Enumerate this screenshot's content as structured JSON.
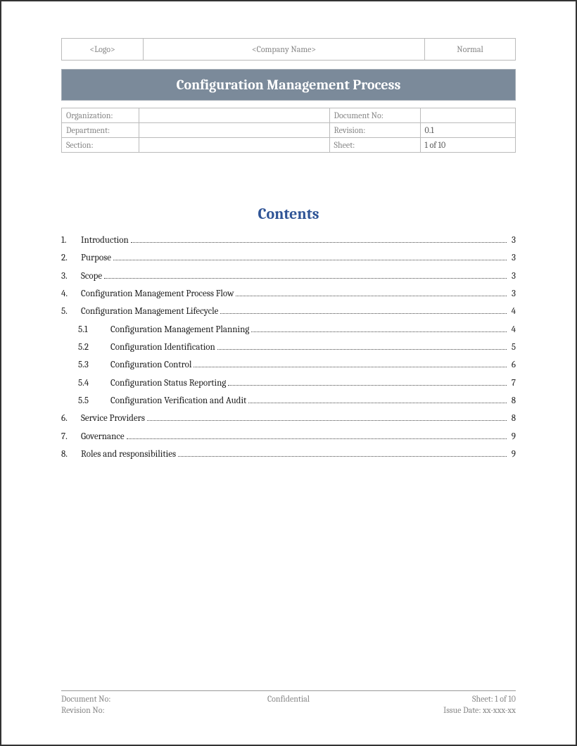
{
  "colors": {
    "title_bar_bg": "#7b8a9a",
    "title_bar_text": "#ffffff",
    "border": "#bbbbbb",
    "muted_text": "#888888",
    "contents_heading": "#2f5496",
    "body_text": "#222222",
    "page_border": "#333333"
  },
  "typography": {
    "font_family": "Cambria, Georgia, serif",
    "title_fontsize": 20,
    "contents_heading_fontsize": 22,
    "body_fontsize": 13,
    "meta_fontsize": 12
  },
  "header": {
    "logo": "<Logo>",
    "company": "<Company Name>",
    "normal": "Normal"
  },
  "title": "Configuration Management Process",
  "meta": {
    "rows": [
      {
        "label1": "Organization:",
        "val1": "",
        "label2": "Document No:",
        "val2": ""
      },
      {
        "label1": "Department:",
        "val1": "",
        "label2": "Revision:",
        "val2": "0.1"
      },
      {
        "label1": "Section:",
        "val1": "",
        "label2": "Sheet:",
        "val2": "1 of 10"
      }
    ]
  },
  "contents_heading": "Contents",
  "toc": [
    {
      "num": "1.",
      "title": "Introduction",
      "page": "3",
      "level": 1
    },
    {
      "num": "2.",
      "title": "Purpose",
      "page": "3",
      "level": 1
    },
    {
      "num": "3.",
      "title": "Scope",
      "page": "3",
      "level": 1
    },
    {
      "num": "4.",
      "title": "Configuration Management Process Flow",
      "page": "3",
      "level": 1
    },
    {
      "num": "5.",
      "title": "Configuration Management Lifecycle",
      "page": "4",
      "level": 1
    },
    {
      "num": "5.1",
      "title": "Configuration Management Planning",
      "page": "4",
      "level": 2
    },
    {
      "num": "5.2",
      "title": "Configuration Identification",
      "page": "5",
      "level": 2
    },
    {
      "num": "5.3",
      "title": "Configuration Control",
      "page": "6",
      "level": 2
    },
    {
      "num": "5.4",
      "title": "Configuration Status Reporting",
      "page": "7",
      "level": 2
    },
    {
      "num": "5.5",
      "title": "Configuration Verification and Audit",
      "page": "8",
      "level": 2
    },
    {
      "num": "6.",
      "title": "Service Providers",
      "page": "8",
      "level": 1
    },
    {
      "num": "7.",
      "title": "Governance",
      "page": "9",
      "level": 1
    },
    {
      "num": "8.",
      "title": "Roles and responsibilities",
      "page": "9",
      "level": 1
    }
  ],
  "footer": {
    "doc_no_label": "Document No:",
    "confidential": "Confidential",
    "sheet": "Sheet: 1 of 10",
    "revision_label": "Revision No:",
    "issue_date": "Issue Date: xx-xxx-xx"
  }
}
